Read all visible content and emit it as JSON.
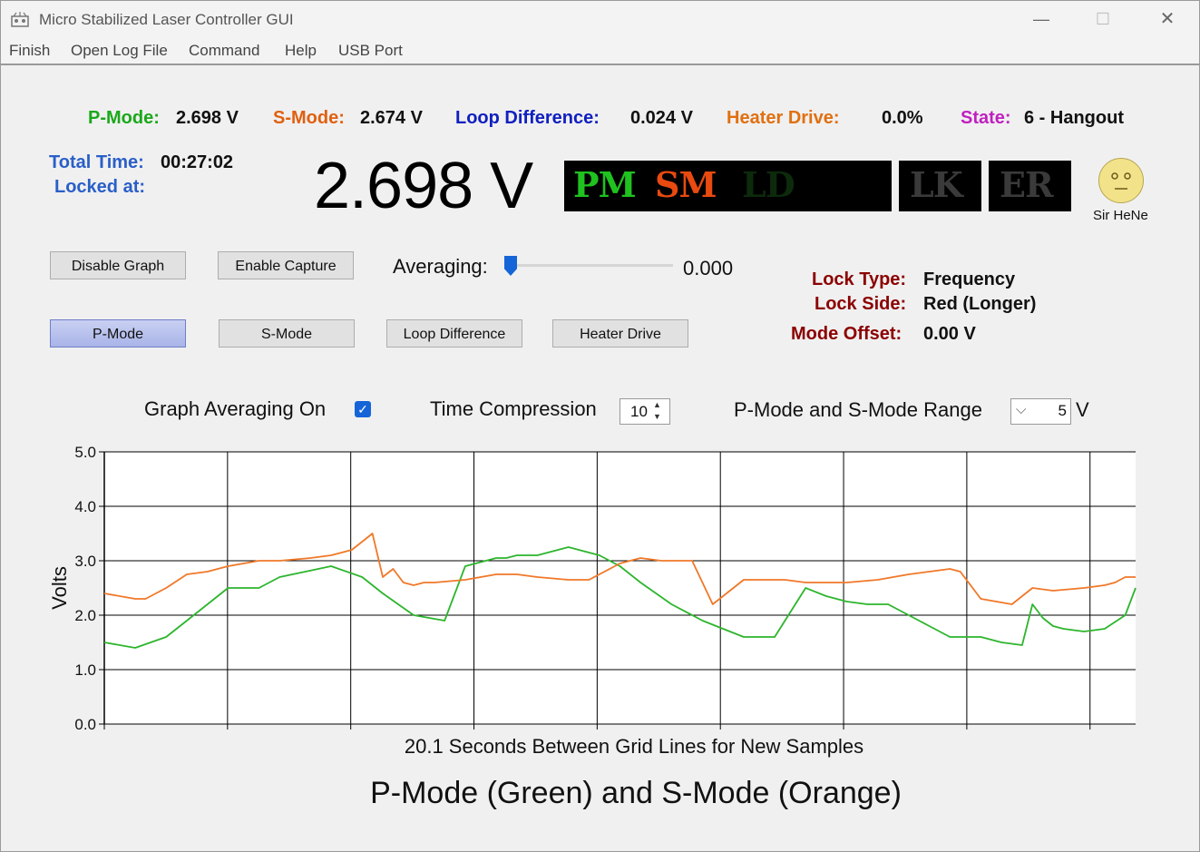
{
  "window": {
    "title": "Micro Stabilized Laser Controller GUI",
    "minimize": "—",
    "maximize": "☐",
    "close": "✕"
  },
  "menu": [
    "Finish",
    "Open Log File",
    "Command",
    "Help",
    "USB Port"
  ],
  "status": {
    "pmode_label": "P-Mode:",
    "pmode_value": "2.698 V",
    "smode_label": "S-Mode:",
    "smode_value": "2.674 V",
    "loopdiff_label": "Loop Difference:",
    "loopdiff_value": "0.024 V",
    "heater_label": "Heater Drive:",
    "heater_value": "0.0%",
    "state_label": "State:",
    "state_value": "6 - Hangout"
  },
  "timing": {
    "total_label": "Total Time:",
    "total_value": "00:27:02",
    "locked_label": "Locked at:"
  },
  "big_value": "2.698 V",
  "indicators": {
    "pm": "PM",
    "sm": "SM",
    "ld": "LD",
    "lk": "LK",
    "er": "ER"
  },
  "mascot": {
    "label": "Sir HeNe"
  },
  "buttons": {
    "disable_graph": "Disable Graph",
    "enable_capture": "Enable Capture",
    "pmode": "P-Mode",
    "smode": "S-Mode",
    "loop_difference": "Loop Difference",
    "heater_drive": "Heater Drive"
  },
  "averaging": {
    "label": "Averaging:",
    "value": "0.000",
    "level": 0
  },
  "lock": {
    "type_label": "Lock Type:",
    "type_value": "Frequency",
    "side_label": "Lock Side:",
    "side_value": "Red (Longer)",
    "offset_label": "Mode Offset:",
    "offset_value": "0.00 V"
  },
  "graph_controls": {
    "averaging_label": "Graph Averaging On",
    "averaging_checked": true,
    "compression_label": "Time Compression",
    "compression_value": "10",
    "range_label": "P-Mode and S-Mode Range",
    "range_value": "5",
    "range_unit": "V"
  },
  "colors": {
    "pmode": "#1aa81a",
    "smode": "#e06010",
    "loop": "#1020c0",
    "heater": "#e07010",
    "state": "#c020c0",
    "time": "#2a5fc8",
    "lock": "#8b0000"
  },
  "chart_data": {
    "type": "line",
    "title": "P-Mode (Green) and S-Mode (Orange)",
    "xlabel": "20.1 Seconds Between Grid Lines for New Samples",
    "ylabel": "Volts",
    "ylim": [
      0,
      5
    ],
    "xlim": [
      0,
      100
    ],
    "y_ticks": [
      "0.0",
      "1.0",
      "2.0",
      "3.0",
      "4.0",
      "5.0"
    ],
    "x_gridlines": 8,
    "grid": true,
    "series": [
      {
        "color": "#2db52d",
        "x": [
          0,
          3,
          6,
          8,
          12,
          15,
          17,
          22,
          25,
          27,
          30,
          33,
          35,
          37,
          38,
          39,
          40,
          42,
          45,
          48,
          50,
          52,
          55,
          58,
          60,
          62,
          65,
          68,
          70,
          71,
          72,
          74,
          76,
          78,
          80,
          82,
          85,
          87,
          89,
          90,
          91,
          92,
          93,
          95,
          97,
          99,
          100
        ],
        "y": [
          1.5,
          1.4,
          1.6,
          1.9,
          2.5,
          2.5,
          2.7,
          2.9,
          2.7,
          2.4,
          2.0,
          1.9,
          2.9,
          3.0,
          3.05,
          3.05,
          3.1,
          3.1,
          3.25,
          3.1,
          2.9,
          2.6,
          2.2,
          1.9,
          1.75,
          1.6,
          1.6,
          2.5,
          2.35,
          2.3,
          2.25,
          2.2,
          2.2,
          2.0,
          1.8,
          1.6,
          1.6,
          1.5,
          1.45,
          2.2,
          1.95,
          1.8,
          1.75,
          1.7,
          1.75,
          2.0,
          2.5
        ]
      },
      {
        "color": "#f07828",
        "x": [
          0,
          3,
          4,
          6,
          8,
          10,
          12,
          15,
          17,
          20,
          22,
          24,
          25,
          26,
          27,
          28,
          29,
          30,
          31,
          32,
          35,
          38,
          40,
          42,
          45,
          47,
          50,
          52,
          54,
          55,
          56,
          57,
          59,
          62,
          66,
          68,
          70,
          72,
          75,
          78,
          80,
          82,
          83,
          85,
          88,
          90,
          92,
          95,
          97,
          98,
          99,
          100
        ],
        "y": [
          2.4,
          2.3,
          2.3,
          2.5,
          2.75,
          2.8,
          2.9,
          3.0,
          3.0,
          3.05,
          3.1,
          3.2,
          3.35,
          3.5,
          2.7,
          2.85,
          2.6,
          2.55,
          2.6,
          2.6,
          2.65,
          2.75,
          2.75,
          2.7,
          2.65,
          2.65,
          2.95,
          3.05,
          3.0,
          3.0,
          3.0,
          3.0,
          2.2,
          2.65,
          2.65,
          2.6,
          2.6,
          2.6,
          2.65,
          2.75,
          2.8,
          2.85,
          2.8,
          2.3,
          2.2,
          2.5,
          2.45,
          2.5,
          2.55,
          2.6,
          2.7,
          2.7
        ]
      }
    ]
  }
}
